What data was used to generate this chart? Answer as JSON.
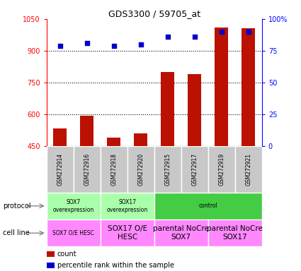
{
  "title": "GDS3300 / 59705_at",
  "samples": [
    "GSM272914",
    "GSM272916",
    "GSM272918",
    "GSM272920",
    "GSM272915",
    "GSM272917",
    "GSM272919",
    "GSM272921"
  ],
  "counts": [
    535,
    595,
    490,
    510,
    800,
    790,
    1010,
    1005
  ],
  "percentile_ranks": [
    79,
    81,
    79,
    80,
    86,
    86,
    90,
    90
  ],
  "ylim_left": [
    450,
    1050
  ],
  "ylim_right": [
    0,
    100
  ],
  "yticks_left": [
    450,
    600,
    750,
    900,
    1050
  ],
  "ytick_labels_left": [
    "450",
    "600",
    "750",
    "900",
    "1050"
  ],
  "yticks_right": [
    0,
    25,
    50,
    75,
    100
  ],
  "ytick_labels_right": [
    "0",
    "25",
    "50",
    "75",
    "100%"
  ],
  "bar_color": "#bb1100",
  "dot_color": "#0000cc",
  "sample_box_color": "#c8c8c8",
  "protocol_groups": [
    {
      "label": "SOX7\noverexpression",
      "color": "#aaffaa",
      "span": [
        0,
        2
      ]
    },
    {
      "label": "SOX17\noverexpression",
      "color": "#aaffaa",
      "span": [
        2,
        4
      ]
    },
    {
      "label": "control",
      "color": "#44cc44",
      "span": [
        4,
        8
      ]
    }
  ],
  "cellline_groups": [
    {
      "label": "SOX7 O/E HESC",
      "color": "#ff88ff",
      "span": [
        0,
        2
      ]
    },
    {
      "label": "SOX17 O/E\nHESC",
      "color": "#ff88ff",
      "span": [
        2,
        4
      ]
    },
    {
      "label": "parental NoCre\nSOX7",
      "color": "#ff88ff",
      "span": [
        4,
        6
      ]
    },
    {
      "label": "parental NoCre\nSOX17",
      "color": "#ff88ff",
      "span": [
        6,
        8
      ]
    }
  ],
  "legend_items": [
    {
      "color": "#bb1100",
      "label": "count"
    },
    {
      "color": "#0000cc",
      "label": "percentile rank within the sample"
    }
  ],
  "fig_width": 4.25,
  "fig_height": 3.84,
  "fig_dpi": 100
}
